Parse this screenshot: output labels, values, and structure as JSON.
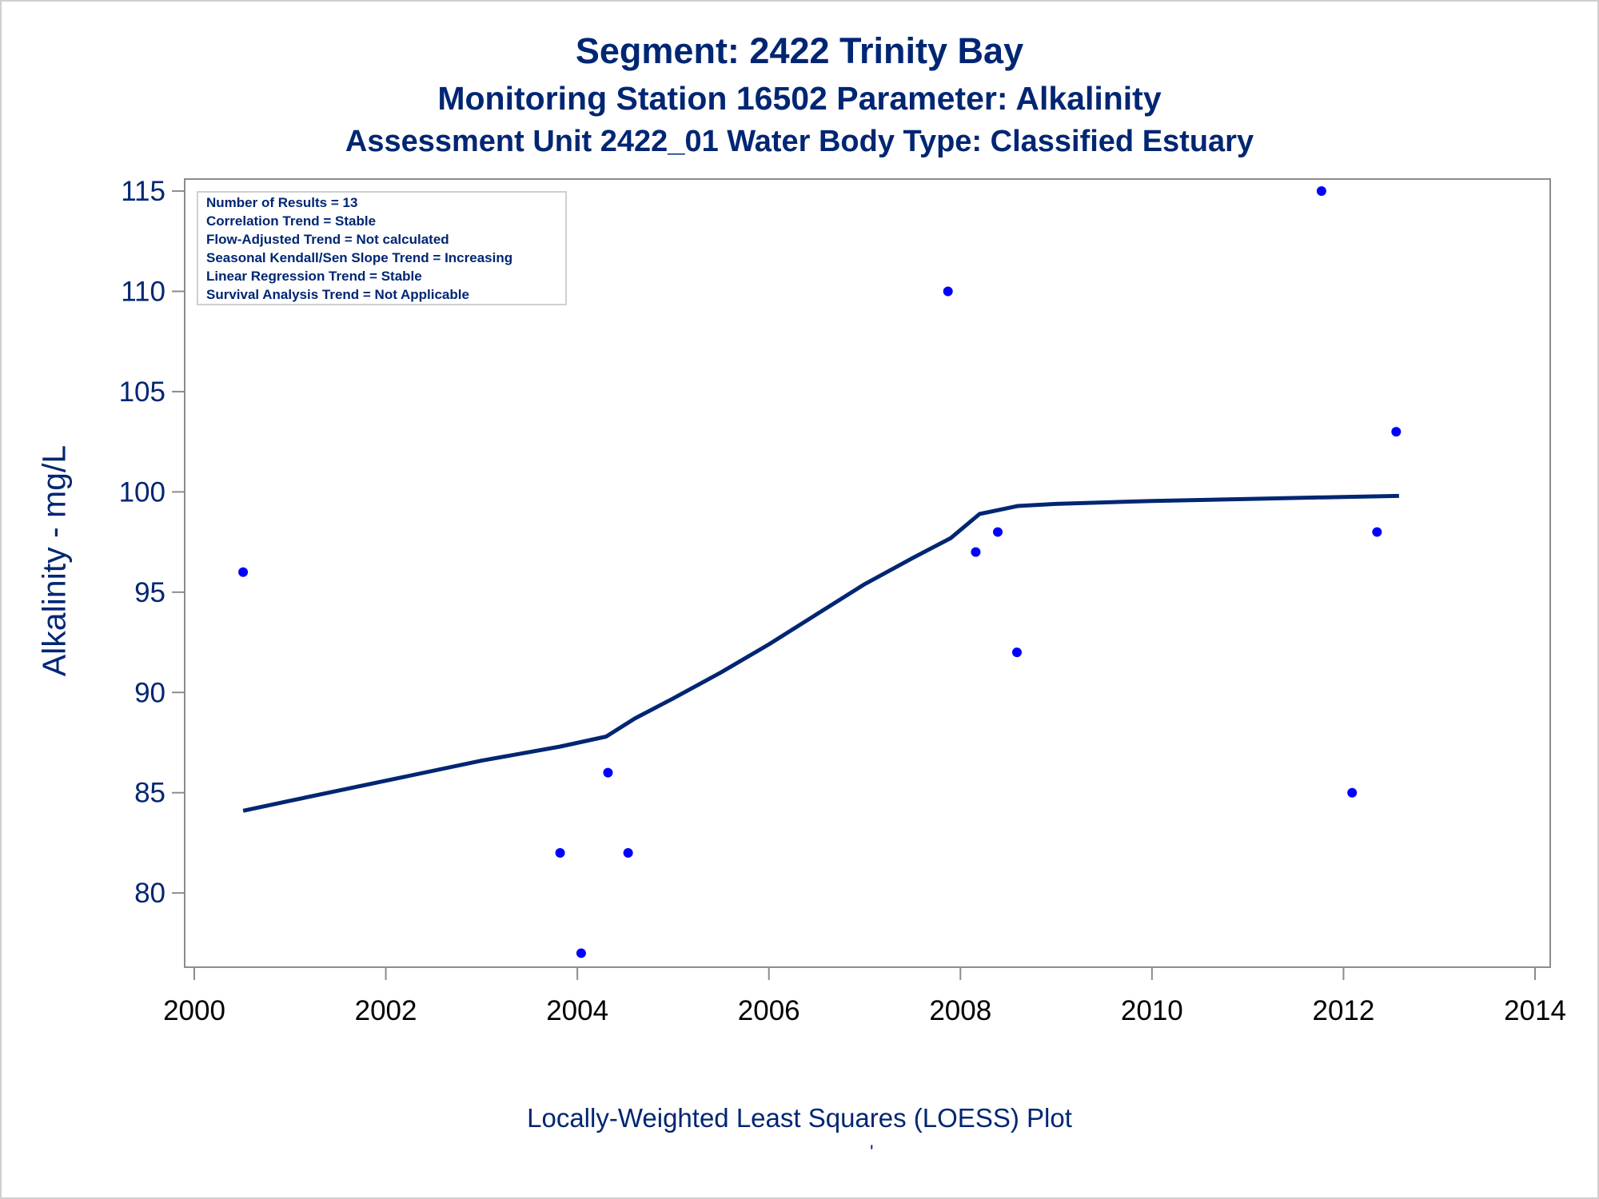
{
  "titles": {
    "line1": "Segment: 2422  Trinity Bay",
    "line2": "Monitoring Station 16502 Parameter: Alkalinity",
    "line3": "Assessment Unit 2422_01   Water Body Type: Classified Estuary"
  },
  "footnote": "Locally-Weighted Least Squares (LOESS) Plot",
  "footnote_mark": "'",
  "legend": {
    "lines": [
      "Number of Results = 13",
      "Correlation Trend = Stable",
      "Flow-Adjusted Trend = Not calculated",
      "Seasonal Kendall/Sen Slope Trend = Increasing",
      "Linear Regression Trend = Stable",
      "Survival Analysis Trend = Not Applicable"
    ]
  },
  "colors": {
    "text": "#002673",
    "points": "#0000ff",
    "loess_line": "#002673",
    "axis": "#8c8c8c"
  },
  "chart_data": {
    "type": "scatter",
    "xlabel": "",
    "ylabel": "Alkalinity - mg/L",
    "xlim": [
      2000,
      2014
    ],
    "ylim": [
      76.3,
      115.6
    ],
    "x_ticks": [
      2000,
      2002,
      2004,
      2006,
      2008,
      2010,
      2012,
      2014
    ],
    "y_ticks": [
      80,
      85,
      90,
      95,
      100,
      105,
      110,
      115
    ],
    "grid": false,
    "legend_placement": "top-left",
    "series": [
      {
        "kind": "points",
        "x": [
          2000.51,
          2003.82,
          2004.04,
          2004.32,
          2004.53,
          2007.87,
          2008.16,
          2008.39,
          2008.59,
          2011.77,
          2012.09,
          2012.35,
          2012.55
        ],
        "y": [
          96,
          82,
          77,
          86,
          82,
          110,
          97,
          98,
          92,
          115,
          85,
          98,
          103
        ]
      },
      {
        "kind": "line",
        "x": [
          2000.51,
          2001.0,
          2002.0,
          2003.0,
          2003.82,
          2004.3,
          2004.6,
          2005.0,
          2005.5,
          2006.0,
          2006.5,
          2007.0,
          2007.5,
          2007.9,
          2008.2,
          2008.6,
          2009.0,
          2010.0,
          2011.0,
          2012.0,
          2012.58
        ],
        "y": [
          84.1,
          84.6,
          85.6,
          86.6,
          87.3,
          87.8,
          88.7,
          89.7,
          91.0,
          92.4,
          93.9,
          95.4,
          96.7,
          97.7,
          98.9,
          99.3,
          99.4,
          99.55,
          99.65,
          99.75,
          99.8
        ]
      }
    ]
  }
}
